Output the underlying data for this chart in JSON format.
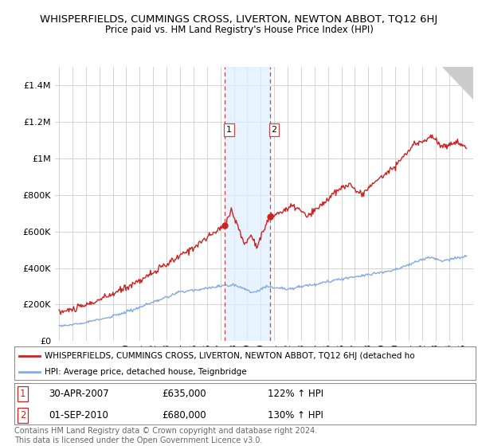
{
  "title": "WHISPERFIELDS, CUMMINGS CROSS, LIVERTON, NEWTON ABBOT, TQ12 6HJ",
  "subtitle": "Price paid vs. HM Land Registry's House Price Index (HPI)",
  "title_fontsize": 9.5,
  "subtitle_fontsize": 8.5,
  "background_color": "#ffffff",
  "plot_bg_color": "#ffffff",
  "grid_color": "#cccccc",
  "red_line_color": "#cc2222",
  "blue_line_color": "#88aadd",
  "ylim": [
    0,
    1500000
  ],
  "yticks": [
    0,
    200000,
    400000,
    600000,
    800000,
    1000000,
    1200000,
    1400000
  ],
  "ytick_labels": [
    "£0",
    "£200K",
    "£400K",
    "£600K",
    "£800K",
    "£1M",
    "£1.2M",
    "£1.4M"
  ],
  "sale1": {
    "date_idx": 2007.33,
    "price": 635000,
    "label": "1",
    "date_str": "30-APR-2007",
    "pct": "122%"
  },
  "sale2": {
    "date_idx": 2010.67,
    "price": 680000,
    "label": "2",
    "date_str": "01-SEP-2010",
    "pct": "130%"
  },
  "legend_red": "WHISPERFIELDS, CUMMINGS CROSS, LIVERTON, NEWTON ABBOT, TQ12 6HJ (detached ho",
  "legend_blue": "HPI: Average price, detached house, Teignbridge",
  "footer": "Contains HM Land Registry data © Crown copyright and database right 2024.\nThis data is licensed under the Open Government Licence v3.0.",
  "footer_fontsize": 7.0,
  "hatch_color": "#ddeeff",
  "xlim_left": 1994.7,
  "xlim_right": 2025.8
}
